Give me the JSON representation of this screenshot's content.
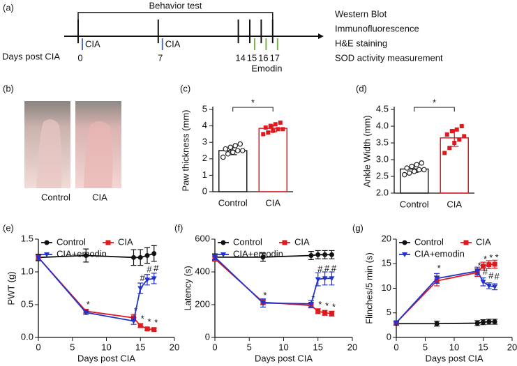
{
  "panel_labels": [
    "(a)",
    "(b)",
    "(c)",
    "(d)",
    "(e)",
    "(f)",
    "(g)"
  ],
  "timeline": {
    "title": "Behavior test",
    "axis_label": "Days post CIA",
    "days": [
      0,
      7,
      14,
      15,
      16,
      17
    ],
    "cia_days": [
      0,
      7
    ],
    "cia_label": "CIA",
    "emodin_days": [
      15,
      16,
      17
    ],
    "emodin_label": "Emodin",
    "assays": [
      "Western Blot",
      "Immunofluorescence",
      "H&E staining",
      "SOD activity measurement"
    ]
  },
  "photos": {
    "labels": [
      "Control",
      "CIA"
    ]
  },
  "chart_data": [
    {
      "type": "bar",
      "ylabel": "Paw thickness (mm)",
      "categories": [
        "Control",
        "CIA"
      ],
      "values": [
        2.5,
        3.85
      ],
      "errors": [
        0.25,
        0.2
      ],
      "colors": [
        "#222222",
        "#e0191e"
      ],
      "points": [
        [
          2.1,
          2.3,
          2.4,
          2.5,
          2.5,
          2.6,
          2.7,
          2.8,
          2.9
        ],
        [
          3.5,
          3.6,
          3.7,
          3.8,
          3.8,
          3.9,
          4.0,
          4.1,
          4.2
        ]
      ],
      "ylim": [
        0,
        5
      ],
      "yticks": [
        0,
        1,
        2,
        3,
        4,
        5
      ],
      "significance": "*"
    },
    {
      "type": "bar",
      "ylabel": "Ankle Width (mm)",
      "categories": [
        "Control",
        "CIA"
      ],
      "values": [
        2.72,
        3.65
      ],
      "errors": [
        0.1,
        0.25
      ],
      "colors": [
        "#222222",
        "#e0191e"
      ],
      "points": [
        [
          2.55,
          2.6,
          2.65,
          2.7,
          2.7,
          2.75,
          2.8,
          2.85,
          2.9
        ],
        [
          3.2,
          3.35,
          3.5,
          3.6,
          3.7,
          3.75,
          3.85,
          3.9,
          4.0
        ]
      ],
      "ylim": [
        2,
        4.5
      ],
      "yticks": [
        {
          "value": 2,
          "label": "2.0"
        },
        {
          "value": 2.5,
          "label": "2.5"
        },
        {
          "value": 3,
          "label": "3.0"
        },
        {
          "value": 3.5,
          "label": "3.5"
        },
        {
          "value": 4,
          "label": "4.0"
        },
        {
          "value": 4.5,
          "label": "4.5"
        }
      ],
      "significance": "*"
    },
    {
      "type": "line",
      "xlabel": "Days post CIA",
      "ylabel": "PWT (g)",
      "x": [
        0,
        7,
        14,
        15,
        16,
        17
      ],
      "xlim": [
        0,
        20
      ],
      "xticks": [
        0,
        5,
        10,
        15,
        20
      ],
      "ylim": [
        0,
        1.5
      ],
      "yticks": [
        {
          "value": 0,
          "label": "0.0"
        },
        {
          "value": 0.5,
          "label": "0.5"
        },
        {
          "value": 1,
          "label": "1.0"
        },
        {
          "value": 1.5,
          "label": "1.5"
        }
      ],
      "series": [
        {
          "name": "Control",
          "color": "#111111",
          "marker": "circle",
          "values": [
            1.22,
            1.25,
            1.22,
            1.22,
            1.25,
            1.28
          ],
          "errors": [
            0.05,
            0.1,
            0.12,
            0.12,
            0.12,
            0.12
          ],
          "flags": [
            null,
            null,
            null,
            null,
            null,
            null
          ]
        },
        {
          "name": "CIA",
          "color": "#e0191e",
          "marker": "square",
          "values": [
            1.22,
            0.4,
            0.3,
            0.18,
            0.13,
            0.12
          ],
          "errors": [
            0.04,
            0.03,
            0.05,
            0.03,
            0.02,
            0.02
          ],
          "flags": [
            null,
            "*",
            "*",
            "*",
            "*",
            "*"
          ]
        },
        {
          "name": "CIA+emodin",
          "color": "#2233cc",
          "marker": "triangle",
          "values": [
            1.22,
            0.38,
            0.25,
            0.75,
            0.88,
            0.9
          ],
          "errors": [
            0.04,
            0.03,
            0.05,
            0.08,
            0.08,
            0.08
          ],
          "flags": [
            null,
            null,
            null,
            "#",
            "#",
            "#"
          ]
        }
      ]
    },
    {
      "type": "line",
      "xlabel": "Days post CIA",
      "ylabel": "Latency (s)",
      "x": [
        0,
        7,
        14,
        15,
        16,
        17
      ],
      "xlim": [
        0,
        20
      ],
      "xticks": [
        0,
        5,
        10,
        15,
        20
      ],
      "ylim": [
        0,
        600
      ],
      "yticks": [
        0,
        200,
        400,
        600
      ],
      "series": [
        {
          "name": "Control",
          "color": "#111111",
          "marker": "circle",
          "values": [
            490,
            490,
            500,
            505,
            505,
            505
          ],
          "errors": [
            20,
            25,
            25,
            25,
            25,
            25
          ],
          "flags": [
            null,
            null,
            null,
            null,
            null,
            null
          ]
        },
        {
          "name": "CIA",
          "color": "#e0191e",
          "marker": "square",
          "values": [
            480,
            215,
            195,
            160,
            150,
            145
          ],
          "errors": [
            15,
            15,
            15,
            15,
            15,
            15
          ],
          "flags": [
            null,
            "*",
            "*",
            "*",
            "*",
            "*"
          ]
        },
        {
          "name": "CIA+emodin",
          "color": "#2233cc",
          "marker": "triangle",
          "values": [
            490,
            210,
            205,
            355,
            360,
            360
          ],
          "errors": [
            15,
            25,
            20,
            40,
            40,
            40
          ],
          "flags": [
            null,
            null,
            null,
            "#",
            "#",
            "#"
          ]
        }
      ]
    },
    {
      "type": "line",
      "xlabel": "Days post CIA",
      "ylabel": "Flinches/5 min (s)",
      "x": [
        0,
        7,
        14,
        15,
        16,
        17
      ],
      "xlim": [
        0,
        20
      ],
      "xticks": [
        0,
        5,
        10,
        15,
        20
      ],
      "ylim": [
        0,
        20
      ],
      "yticks": [
        0,
        5,
        10,
        15,
        20
      ],
      "series": [
        {
          "name": "Control",
          "color": "#111111",
          "marker": "circle",
          "values": [
            2.8,
            2.8,
            2.9,
            3.1,
            3.2,
            3.2
          ],
          "errors": [
            0.3,
            0.5,
            0.5,
            0.5,
            0.5,
            0.5
          ],
          "flags": [
            null,
            null,
            null,
            null,
            null,
            null
          ]
        },
        {
          "name": "CIA",
          "color": "#e0191e",
          "marker": "square",
          "values": [
            3,
            11.5,
            13.2,
            14.5,
            14.8,
            14.9
          ],
          "errors": [
            0.3,
            1,
            0.8,
            0.8,
            0.8,
            0.8
          ],
          "flags": [
            null,
            null,
            "*",
            "*",
            "*",
            "*"
          ]
        },
        {
          "name": "CIA+emodin",
          "color": "#2233cc",
          "marker": "triangle",
          "values": [
            3,
            12,
            13.5,
            11.3,
            10.5,
            10.3
          ],
          "errors": [
            0.3,
            1,
            0.8,
            0.8,
            0.6,
            0.6
          ],
          "flags": [
            null,
            "*",
            null,
            "#",
            "#",
            "#"
          ]
        }
      ]
    }
  ]
}
